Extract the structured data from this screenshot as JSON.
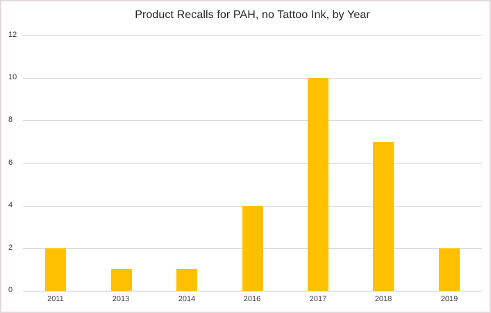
{
  "chart_data": {
    "type": "bar",
    "title": "Product Recalls for PAH, no Tattoo Ink, by Year",
    "categories": [
      "2011",
      "2013",
      "2014",
      "2016",
      "2017",
      "2018",
      "2019"
    ],
    "values": [
      2,
      1,
      1,
      4,
      10,
      7,
      2
    ],
    "xlabel": "",
    "ylabel": "",
    "ylim": [
      0,
      12
    ],
    "yticks": [
      0,
      2,
      4,
      6,
      8,
      10,
      12
    ],
    "grid": true,
    "legend": false,
    "bar_color": "#FFC000"
  },
  "colors": {
    "bar": "#FFC000",
    "gridline": "#DAD4D4",
    "axis_line": "#BFBFBF",
    "border": "#E2D9DC",
    "tick_text": "#3B3B3B",
    "title_text": "#212121",
    "background": "#FFFFFF"
  }
}
